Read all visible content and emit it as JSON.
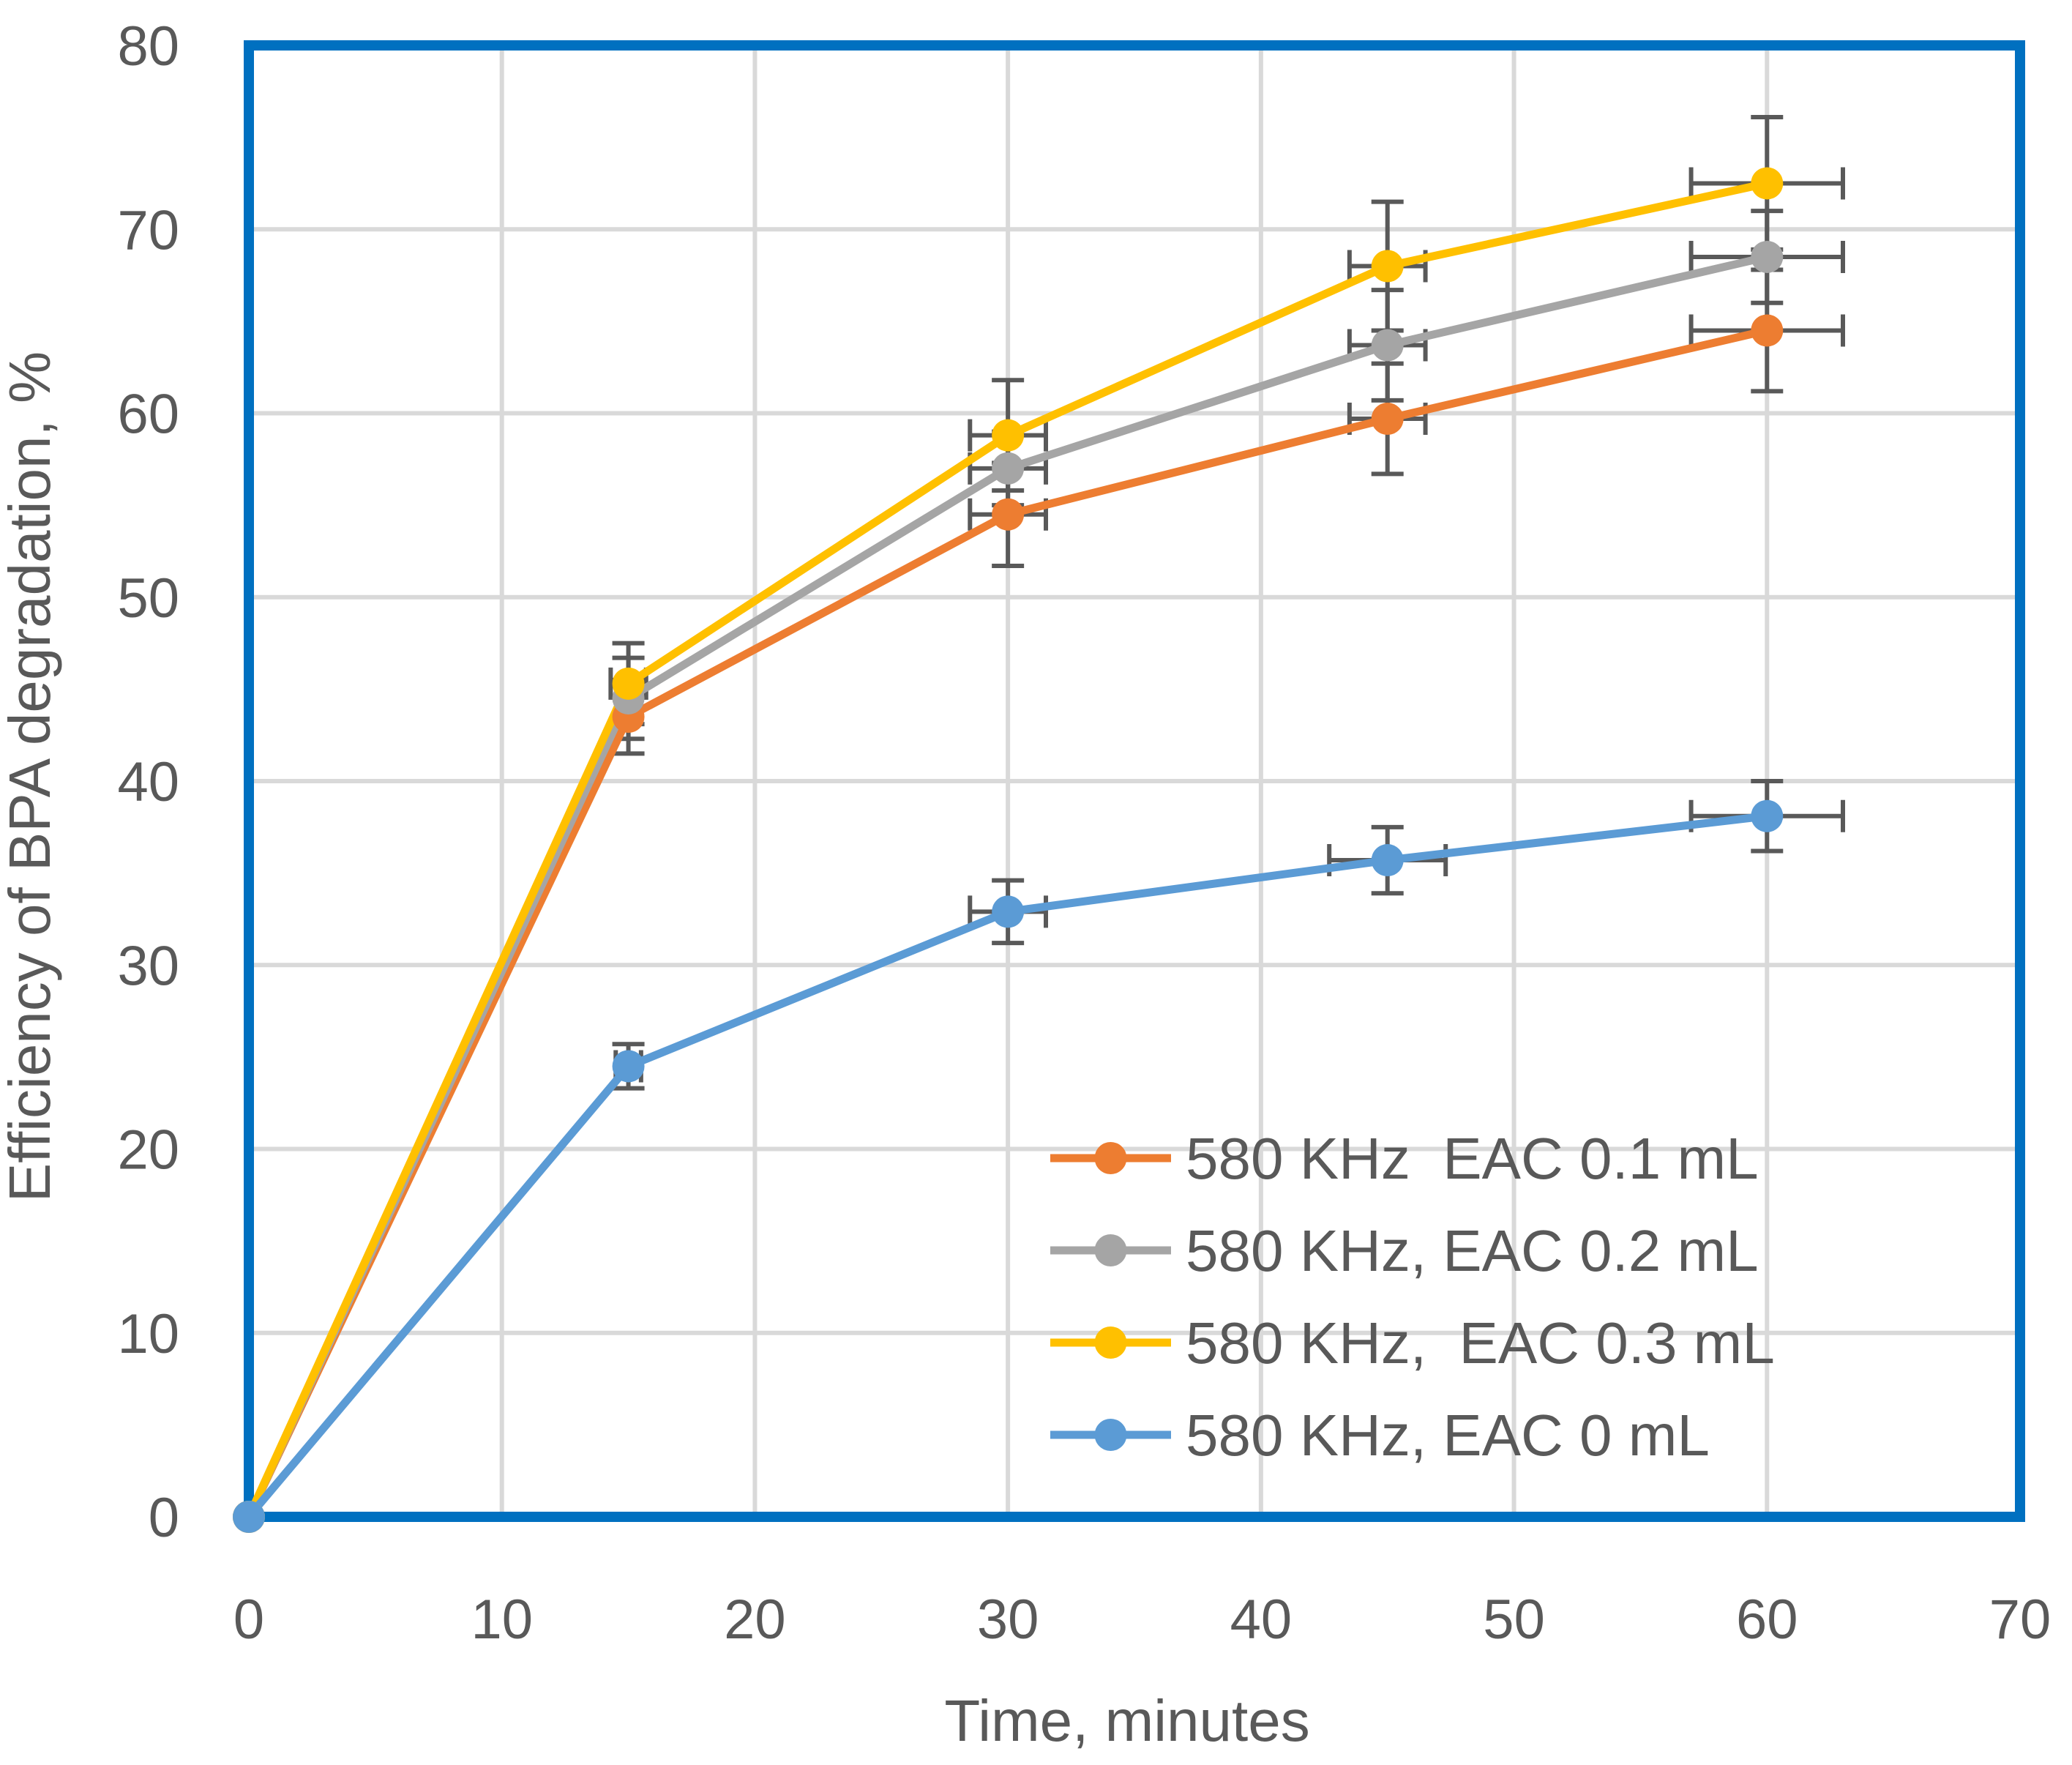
{
  "chart_data": {
    "type": "line",
    "title": "",
    "xlabel": "Time, minutes",
    "ylabel": "Efficiency of BPA degradation, %",
    "xlim": [
      0,
      70
    ],
    "ylim": [
      0,
      80
    ],
    "x_ticks": [
      0,
      10,
      20,
      30,
      40,
      50,
      60,
      70
    ],
    "y_ticks": [
      0,
      10,
      20,
      30,
      40,
      50,
      60,
      70,
      80
    ],
    "x_tick_labels": [
      "0",
      "10",
      "20",
      "30",
      "40",
      "50",
      "60",
      "70"
    ],
    "y_tick_labels": [
      "0",
      "10",
      "20",
      "30",
      "40",
      "50",
      "60",
      "70",
      "80"
    ],
    "grid": true,
    "legend_position": "bottom-right",
    "x": [
      0,
      15,
      30,
      45,
      60
    ],
    "series": [
      {
        "name": "580 KHz  EAC 0.1 mL",
        "color": "#ED7D31",
        "values": [
          0,
          43.5,
          54.5,
          59.7,
          64.5
        ],
        "y_error": [
          0,
          2.0,
          2.8,
          3.0,
          3.3
        ],
        "x_error": [
          0,
          0,
          1.5,
          1.5,
          3.0
        ]
      },
      {
        "name": "580 KHz, EAC 0.2 mL",
        "color": "#A5A5A5",
        "values": [
          0,
          44.5,
          57.0,
          63.7,
          68.5
        ],
        "y_error": [
          0,
          2.2,
          2.0,
          3.0,
          2.5
        ],
        "x_error": [
          0,
          0,
          1.5,
          1.5,
          3.0
        ]
      },
      {
        "name": "580 KHz,  EAC 0.3 mL",
        "color": "#FFC000",
        "values": [
          0,
          45.3,
          58.8,
          68.0,
          72.5
        ],
        "y_error": [
          0,
          2.2,
          3.0,
          3.5,
          3.6
        ],
        "x_error": [
          0,
          0.7,
          1.5,
          1.5,
          3.0
        ]
      },
      {
        "name": "580 KHz, EAC 0 mL",
        "color": "#5B9BD5",
        "values": [
          0,
          24.5,
          32.9,
          35.7,
          38.1
        ],
        "y_error": [
          0,
          1.2,
          1.7,
          1.8,
          1.9
        ],
        "x_error": [
          0,
          0.5,
          1.5,
          2.3,
          3.0
        ]
      }
    ]
  },
  "frame_color": "#0070C0",
  "errorbar_color": "#595959",
  "gridline_color": "#D9D9D9"
}
